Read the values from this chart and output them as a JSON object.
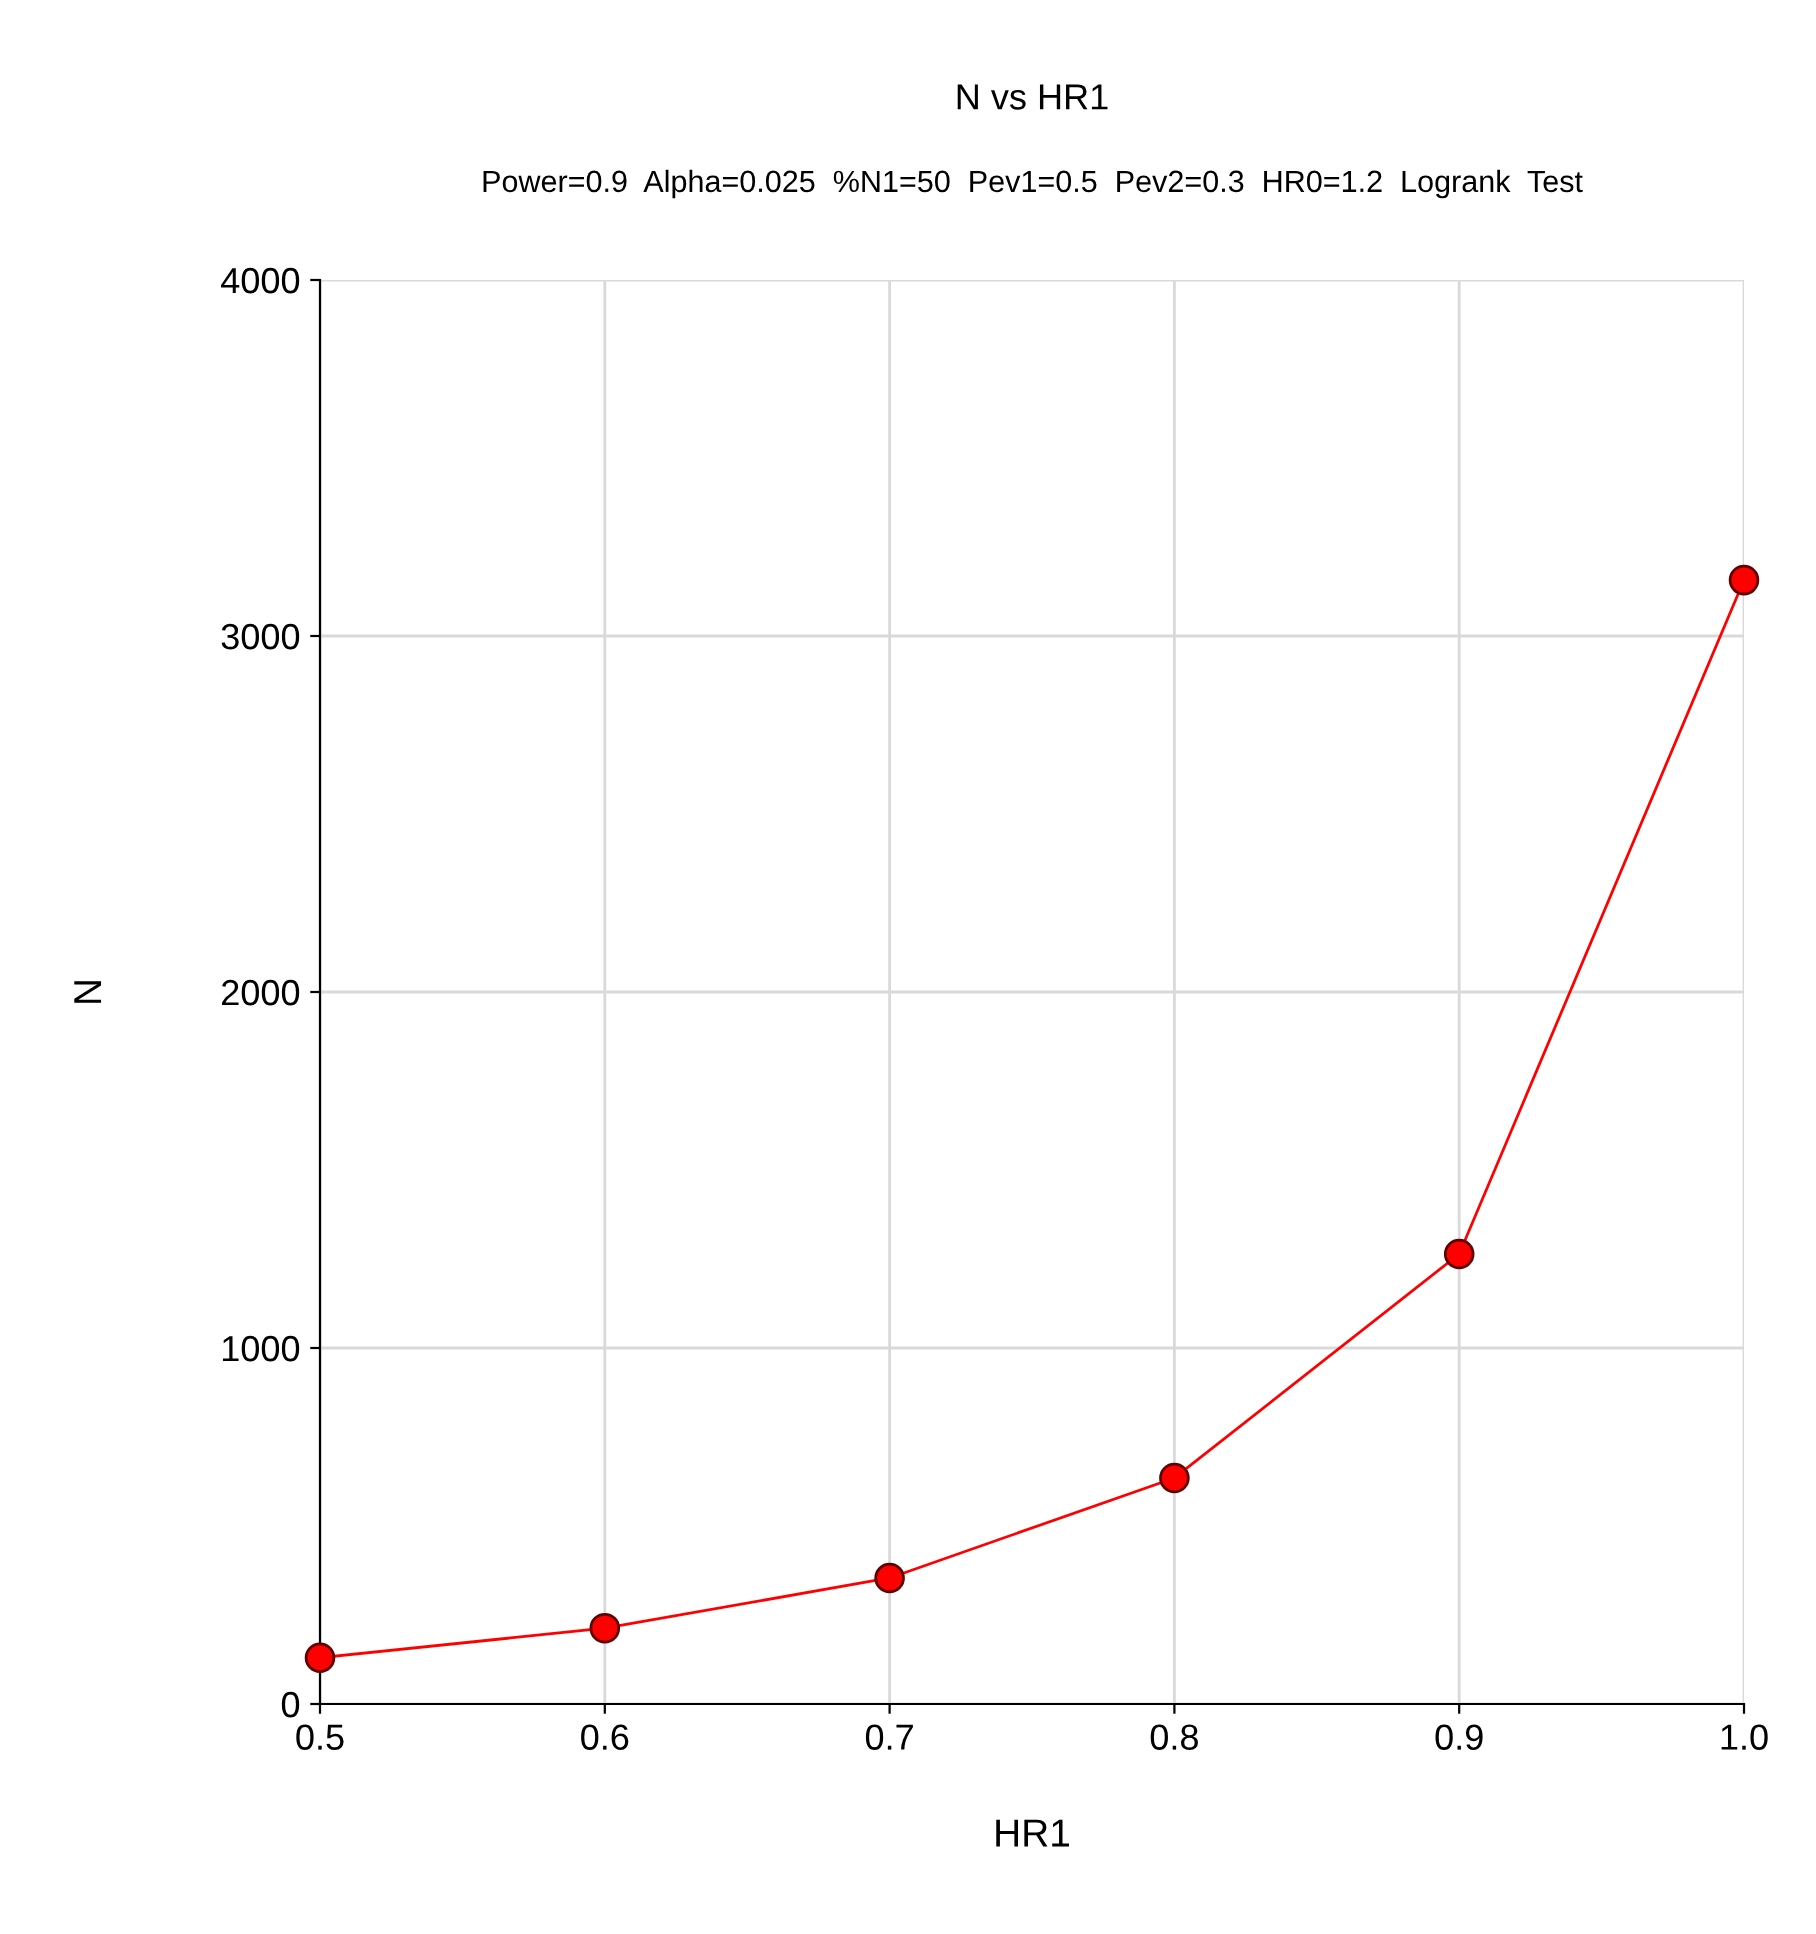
{
  "chart_data": {
    "type": "line",
    "title": "N vs HR1",
    "subtitle": "Power=0.9  Alpha=0.025  %N1=50  Pev1=0.5  Pev2=0.3  HR0=1.2  Logrank  Test",
    "xlabel": "HR1",
    "ylabel": "N",
    "x": [
      0.5,
      0.6,
      0.7,
      0.8,
      0.9,
      1.0
    ],
    "series": [
      {
        "color": "#ff0000",
        "values": [
          130,
          213,
          354,
          635,
          1264,
          3157
        ]
      }
    ],
    "xlim": [
      0.5,
      1
    ],
    "xticks": [
      0.5,
      0.6,
      0.7,
      0.8,
      0.9,
      {
        "value": 1,
        "label": "1.0"
      }
    ],
    "ylim": [
      0,
      4000
    ],
    "yticks": [
      0,
      1000,
      2000,
      3000,
      4000
    ],
    "grid": true,
    "marker": "circle",
    "line_style": "solid",
    "legend": false
  }
}
